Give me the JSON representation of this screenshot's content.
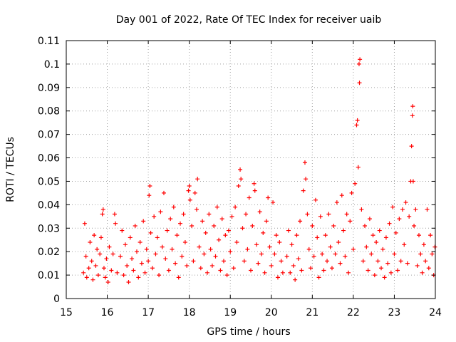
{
  "chart_data": {
    "type": "scatter",
    "title": "Day 001 of 2022, Rate Of TEC Index for receiver uaib",
    "xlabel": "GPS time / hours",
    "ylabel": "ROTI / TECUs",
    "xlim": [
      15,
      24
    ],
    "ylim": [
      0,
      0.11
    ],
    "xticks": [
      15,
      16,
      17,
      18,
      19,
      20,
      21,
      22,
      23,
      24
    ],
    "xtick_labels": [
      "15",
      "16",
      "17",
      "18",
      "19",
      "20",
      "21",
      "22",
      "23",
      "24"
    ],
    "yticks": [
      0,
      0.01,
      0.02,
      0.03,
      0.04,
      0.05,
      0.06,
      0.07,
      0.08,
      0.09,
      0.1,
      0.11
    ],
    "ytick_labels": [
      "0",
      "0.01",
      "0.02",
      "0.03",
      "0.04",
      "0.05",
      "0.06",
      "0.07",
      "0.08",
      "0.09",
      "0.1",
      "0.11"
    ],
    "grid": true,
    "marker": "+",
    "series": [
      {
        "name": "ROTI",
        "color": "#ff0000",
        "points": [
          [
            15.42,
            0.011
          ],
          [
            15.45,
            0.032
          ],
          [
            15.48,
            0.018
          ],
          [
            15.5,
            0.009
          ],
          [
            15.55,
            0.013
          ],
          [
            15.58,
            0.024
          ],
          [
            15.62,
            0.016
          ],
          [
            15.65,
            0.008
          ],
          [
            15.68,
            0.027
          ],
          [
            15.72,
            0.014
          ],
          [
            15.75,
            0.021
          ],
          [
            15.78,
            0.01
          ],
          [
            15.82,
            0.019
          ],
          [
            15.85,
            0.026
          ],
          [
            15.88,
            0.036
          ],
          [
            15.9,
            0.038
          ],
          [
            15.92,
            0.013
          ],
          [
            15.95,
            0.009
          ],
          [
            15.98,
            0.017
          ],
          [
            16.02,
            0.007
          ],
          [
            16.05,
            0.022
          ],
          [
            16.1,
            0.012
          ],
          [
            16.14,
            0.019
          ],
          [
            16.18,
            0.036
          ],
          [
            16.2,
            0.032
          ],
          [
            16.24,
            0.011
          ],
          [
            16.32,
            0.018
          ],
          [
            16.36,
            0.029
          ],
          [
            16.4,
            0.01
          ],
          [
            16.44,
            0.023
          ],
          [
            16.48,
            0.014
          ],
          [
            16.52,
            0.007
          ],
          [
            16.56,
            0.026
          ],
          [
            16.6,
            0.017
          ],
          [
            16.64,
            0.012
          ],
          [
            16.68,
            0.031
          ],
          [
            16.72,
            0.02
          ],
          [
            16.76,
            0.009
          ],
          [
            16.8,
            0.024
          ],
          [
            16.84,
            0.015
          ],
          [
            16.88,
            0.033
          ],
          [
            16.92,
            0.011
          ],
          [
            16.96,
            0.021
          ],
          [
            17.0,
            0.016
          ],
          [
            17.02,
            0.044
          ],
          [
            17.04,
            0.048
          ],
          [
            17.06,
            0.028
          ],
          [
            17.1,
            0.013
          ],
          [
            17.14,
            0.035
          ],
          [
            17.18,
            0.019
          ],
          [
            17.22,
            0.026
          ],
          [
            17.26,
            0.01
          ],
          [
            17.3,
            0.037
          ],
          [
            17.34,
            0.022
          ],
          [
            17.38,
            0.045
          ],
          [
            17.42,
            0.017
          ],
          [
            17.46,
            0.029
          ],
          [
            17.5,
            0.012
          ],
          [
            17.54,
            0.034
          ],
          [
            17.58,
            0.021
          ],
          [
            17.62,
            0.039
          ],
          [
            17.66,
            0.015
          ],
          [
            17.7,
            0.027
          ],
          [
            17.74,
            0.009
          ],
          [
            17.78,
            0.032
          ],
          [
            17.82,
            0.018
          ],
          [
            17.86,
            0.036
          ],
          [
            17.9,
            0.024
          ],
          [
            17.94,
            0.014
          ],
          [
            17.98,
            0.046
          ],
          [
            18.0,
            0.048
          ],
          [
            18.02,
            0.042
          ],
          [
            18.06,
            0.031
          ],
          [
            18.1,
            0.016
          ],
          [
            18.14,
            0.045
          ],
          [
            18.18,
            0.038
          ],
          [
            18.2,
            0.051
          ],
          [
            18.24,
            0.022
          ],
          [
            18.28,
            0.013
          ],
          [
            18.32,
            0.033
          ],
          [
            18.36,
            0.019
          ],
          [
            18.4,
            0.028
          ],
          [
            18.44,
            0.011
          ],
          [
            18.48,
            0.036
          ],
          [
            18.52,
            0.021
          ],
          [
            18.56,
            0.014
          ],
          [
            18.6,
            0.031
          ],
          [
            18.64,
            0.018
          ],
          [
            18.68,
            0.039
          ],
          [
            18.72,
            0.025
          ],
          [
            18.76,
            0.012
          ],
          [
            18.8,
            0.034
          ],
          [
            18.84,
            0.016
          ],
          [
            18.88,
            0.027
          ],
          [
            18.92,
            0.01
          ],
          [
            18.96,
            0.029
          ],
          [
            19.0,
            0.02
          ],
          [
            19.04,
            0.035
          ],
          [
            19.08,
            0.013
          ],
          [
            19.12,
            0.039
          ],
          [
            19.16,
            0.024
          ],
          [
            19.2,
            0.048
          ],
          [
            19.24,
            0.055
          ],
          [
            19.26,
            0.051
          ],
          [
            19.3,
            0.03
          ],
          [
            19.34,
            0.016
          ],
          [
            19.38,
            0.036
          ],
          [
            19.42,
            0.021
          ],
          [
            19.46,
            0.043
          ],
          [
            19.5,
            0.012
          ],
          [
            19.54,
            0.031
          ],
          [
            19.58,
            0.049
          ],
          [
            19.6,
            0.046
          ],
          [
            19.64,
            0.023
          ],
          [
            19.68,
            0.015
          ],
          [
            19.72,
            0.037
          ],
          [
            19.76,
            0.019
          ],
          [
            19.8,
            0.028
          ],
          [
            19.84,
            0.011
          ],
          [
            19.88,
            0.033
          ],
          [
            19.92,
            0.043
          ],
          [
            19.96,
            0.022
          ],
          [
            20.0,
            0.014
          ],
          [
            20.04,
            0.041
          ],
          [
            20.08,
            0.019
          ],
          [
            20.12,
            0.027
          ],
          [
            20.16,
            0.009
          ],
          [
            20.2,
            0.024
          ],
          [
            20.24,
            0.016
          ],
          [
            20.28,
            0.011
          ],
          [
            20.38,
            0.018
          ],
          [
            20.42,
            0.029
          ],
          [
            20.46,
            0.011
          ],
          [
            20.5,
            0.023
          ],
          [
            20.54,
            0.014
          ],
          [
            20.58,
            0.008
          ],
          [
            20.62,
            0.027
          ],
          [
            20.66,
            0.017
          ],
          [
            20.7,
            0.033
          ],
          [
            20.74,
            0.012
          ],
          [
            20.78,
            0.046
          ],
          [
            20.82,
            0.058
          ],
          [
            20.84,
            0.051
          ],
          [
            20.88,
            0.036
          ],
          [
            20.92,
            0.021
          ],
          [
            20.96,
            0.013
          ],
          [
            21.0,
            0.031
          ],
          [
            21.04,
            0.018
          ],
          [
            21.08,
            0.042
          ],
          [
            21.12,
            0.026
          ],
          [
            21.16,
            0.009
          ],
          [
            21.2,
            0.035
          ],
          [
            21.24,
            0.019
          ],
          [
            21.28,
            0.012
          ],
          [
            21.32,
            0.027
          ],
          [
            21.36,
            0.016
          ],
          [
            21.4,
            0.036
          ],
          [
            21.44,
            0.022
          ],
          [
            21.48,
            0.013
          ],
          [
            21.52,
            0.031
          ],
          [
            21.56,
            0.019
          ],
          [
            21.6,
            0.041
          ],
          [
            21.64,
            0.024
          ],
          [
            21.68,
            0.015
          ],
          [
            21.72,
            0.044
          ],
          [
            21.76,
            0.029
          ],
          [
            21.8,
            0.018
          ],
          [
            21.84,
            0.036
          ],
          [
            21.88,
            0.011
          ],
          [
            21.92,
            0.033
          ],
          [
            21.96,
            0.045
          ],
          [
            22.0,
            0.021
          ],
          [
            22.04,
            0.049
          ],
          [
            22.08,
            0.074
          ],
          [
            22.1,
            0.076
          ],
          [
            22.12,
            0.056
          ],
          [
            22.14,
            0.1
          ],
          [
            22.15,
            0.092
          ],
          [
            22.16,
            0.102
          ],
          [
            22.2,
            0.038
          ],
          [
            22.24,
            0.016
          ],
          [
            22.28,
            0.031
          ],
          [
            22.32,
            0.022
          ],
          [
            22.36,
            0.012
          ],
          [
            22.4,
            0.034
          ],
          [
            22.44,
            0.019
          ],
          [
            22.48,
            0.027
          ],
          [
            22.52,
            0.01
          ],
          [
            22.56,
            0.024
          ],
          [
            22.6,
            0.016
          ],
          [
            22.64,
            0.029
          ],
          [
            22.68,
            0.013
          ],
          [
            22.72,
            0.021
          ],
          [
            22.76,
            0.009
          ],
          [
            22.8,
            0.026
          ],
          [
            22.84,
            0.015
          ],
          [
            22.88,
            0.032
          ],
          [
            22.92,
            0.011
          ],
          [
            22.96,
            0.039
          ],
          [
            23.0,
            0.019
          ],
          [
            23.04,
            0.028
          ],
          [
            23.08,
            0.012
          ],
          [
            23.12,
            0.034
          ],
          [
            23.16,
            0.016
          ],
          [
            23.2,
            0.038
          ],
          [
            23.24,
            0.023
          ],
          [
            23.28,
            0.041
          ],
          [
            23.32,
            0.015
          ],
          [
            23.36,
            0.035
          ],
          [
            23.4,
            0.05
          ],
          [
            23.42,
            0.065
          ],
          [
            23.44,
            0.078
          ],
          [
            23.45,
            0.082
          ],
          [
            23.46,
            0.05
          ],
          [
            23.48,
            0.031
          ],
          [
            23.52,
            0.038
          ],
          [
            23.56,
            0.014
          ],
          [
            23.6,
            0.027
          ],
          [
            23.64,
            0.019
          ],
          [
            23.68,
            0.011
          ],
          [
            23.72,
            0.023
          ],
          [
            23.76,
            0.016
          ],
          [
            23.8,
            0.038
          ],
          [
            23.84,
            0.013
          ],
          [
            23.88,
            0.027
          ],
          [
            23.92,
            0.019
          ],
          [
            23.96,
            0.01
          ],
          [
            23.99,
            0.022
          ]
        ]
      }
    ]
  }
}
